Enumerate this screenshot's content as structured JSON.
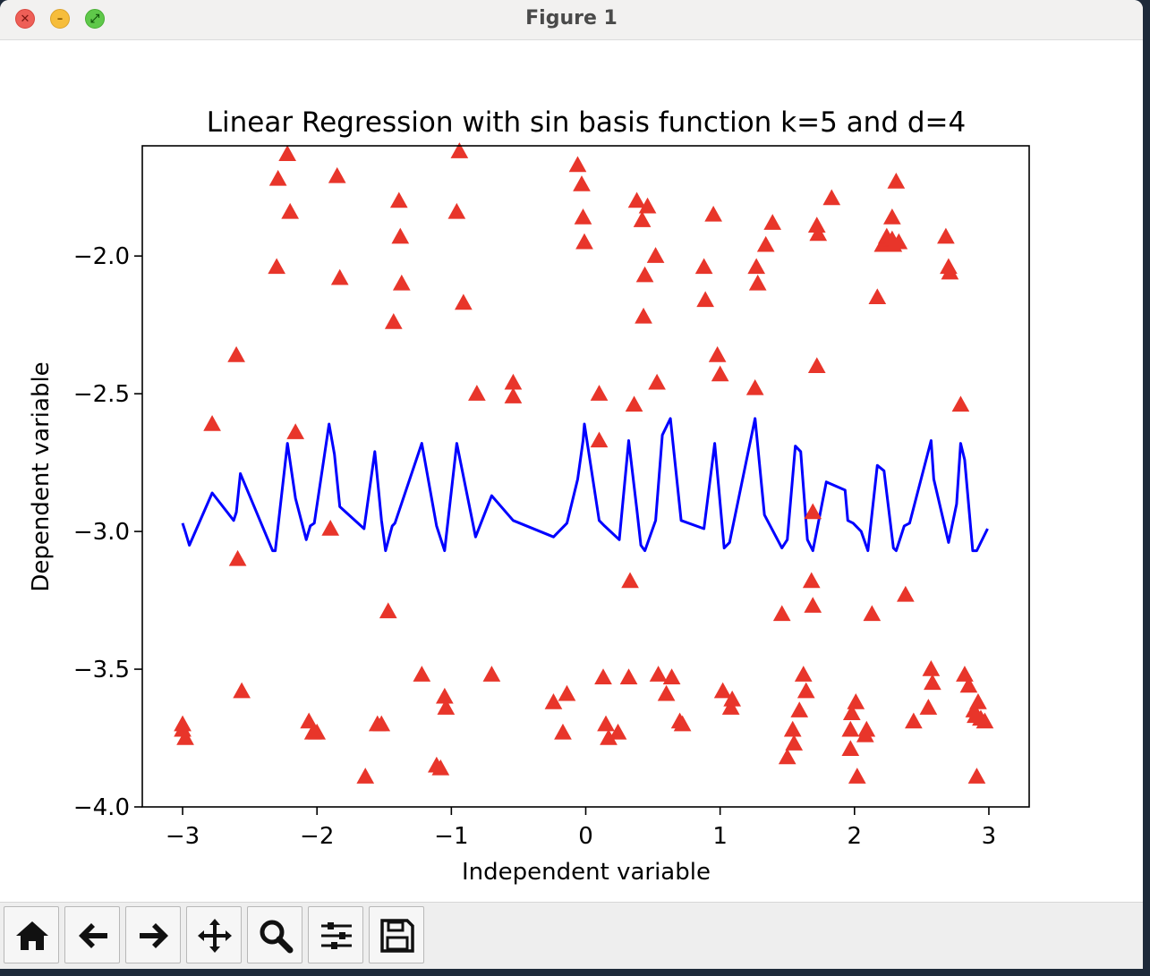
{
  "window": {
    "title": "Figure 1",
    "controls": {
      "close": "✕",
      "minimize": "–",
      "maximize": "⤢"
    }
  },
  "toolbar": {
    "buttons": [
      {
        "name": "home-button",
        "icon": "home-icon"
      },
      {
        "name": "back-button",
        "icon": "arrow-left-icon"
      },
      {
        "name": "forward-button",
        "icon": "arrow-right-icon"
      },
      {
        "name": "pan-button",
        "icon": "move-icon"
      },
      {
        "name": "zoom-button",
        "icon": "magnifier-icon"
      },
      {
        "name": "configure-subplots-button",
        "icon": "sliders-icon"
      },
      {
        "name": "save-button",
        "icon": "floppy-disk-icon"
      }
    ]
  },
  "chart_data": {
    "type": "line+scatter",
    "title": "Linear Regression with sin basis function k=5 and d=4",
    "xlabel": "Independent variable",
    "ylabel": "Dependent variable",
    "xlim": [
      -3.3,
      3.3
    ],
    "ylim": [
      -4.0,
      -1.6
    ],
    "xticks": [
      -3,
      -2,
      -1,
      0,
      1,
      2,
      3
    ],
    "xtick_labels": [
      "−3",
      "−2",
      "−1",
      "0",
      "1",
      "2",
      "3"
    ],
    "yticks": [
      -4.0,
      -3.5,
      -3.0,
      -2.5,
      -2.0
    ],
    "ytick_labels": [
      "−4.0",
      "−3.5",
      "−3.0",
      "−2.5",
      "−2.0"
    ],
    "grid": false,
    "series": [
      {
        "kind": "line",
        "color": "#0000ff",
        "x": [
          -3.0,
          -2.98,
          -2.95,
          -2.78,
          -2.62,
          -2.6,
          -2.57,
          -2.33,
          -2.31,
          -2.22,
          -2.16,
          -2.08,
          -2.05,
          -2.02,
          -1.91,
          -1.87,
          -1.83,
          -1.65,
          -1.57,
          -1.52,
          -1.49,
          -1.44,
          -1.42,
          -1.22,
          -1.11,
          -1.05,
          -0.96,
          -0.82,
          -0.7,
          -0.54,
          -0.24,
          -0.14,
          -0.06,
          -0.02,
          -0.01,
          0.1,
          0.14,
          0.25,
          0.32,
          0.38,
          0.41,
          0.44,
          0.52,
          0.57,
          0.63,
          0.71,
          0.88,
          0.96,
          1.03,
          1.07,
          1.26,
          1.33,
          1.46,
          1.5,
          1.56,
          1.6,
          1.65,
          1.69,
          1.79,
          1.93,
          1.95,
          1.99,
          2.05,
          2.1,
          2.17,
          2.22,
          2.29,
          2.31,
          2.37,
          2.41,
          2.57,
          2.59,
          2.7,
          2.76,
          2.79,
          2.82,
          2.88,
          2.91,
          2.99
        ],
        "y": [
          -2.97,
          -3.0,
          -3.05,
          -2.86,
          -2.96,
          -2.93,
          -2.79,
          -3.07,
          -3.07,
          -2.68,
          -2.88,
          -3.03,
          -2.98,
          -2.97,
          -2.61,
          -2.72,
          -2.91,
          -2.99,
          -2.71,
          -2.96,
          -3.07,
          -2.98,
          -2.97,
          -2.68,
          -2.98,
          -3.07,
          -2.68,
          -3.02,
          -2.87,
          -2.96,
          -3.02,
          -2.97,
          -2.81,
          -2.67,
          -2.61,
          -2.96,
          -2.98,
          -3.03,
          -2.67,
          -2.92,
          -3.05,
          -3.07,
          -2.96,
          -2.65,
          -2.59,
          -2.96,
          -2.99,
          -2.68,
          -3.06,
          -3.04,
          -2.59,
          -2.94,
          -3.06,
          -3.03,
          -2.69,
          -2.71,
          -3.03,
          -3.07,
          -2.82,
          -2.85,
          -2.96,
          -2.97,
          -3.0,
          -3.07,
          -2.76,
          -2.78,
          -3.06,
          -3.07,
          -2.98,
          -2.97,
          -2.67,
          -2.81,
          -3.04,
          -2.9,
          -2.68,
          -2.74,
          -3.07,
          -3.07,
          -2.99
        ]
      },
      {
        "kind": "scatter",
        "marker": "triangle",
        "color": "#e8352a",
        "x": [
          -3.0,
          -3.0,
          -2.98,
          -2.78,
          -2.6,
          -2.59,
          -2.56,
          -2.3,
          -2.29,
          -2.22,
          -2.2,
          -2.16,
          -2.06,
          -2.03,
          -2.0,
          -1.9,
          -1.85,
          -1.83,
          -1.64,
          -1.55,
          -1.52,
          -1.47,
          -1.43,
          -1.39,
          -1.38,
          -1.37,
          -1.22,
          -1.11,
          -1.08,
          -1.05,
          -1.04,
          -0.96,
          -0.94,
          -0.91,
          -0.81,
          -0.7,
          -0.54,
          -0.54,
          -0.24,
          -0.17,
          -0.14,
          -0.06,
          -0.03,
          -0.02,
          -0.01,
          0.1,
          0.1,
          0.13,
          0.15,
          0.17,
          0.24,
          0.32,
          0.33,
          0.36,
          0.38,
          0.42,
          0.43,
          0.44,
          0.46,
          0.52,
          0.53,
          0.54,
          0.6,
          0.64,
          0.7,
          0.72,
          0.88,
          0.89,
          0.95,
          0.98,
          1.0,
          1.02,
          1.08,
          1.09,
          1.26,
          1.27,
          1.28,
          1.34,
          1.39,
          1.46,
          1.5,
          1.54,
          1.55,
          1.59,
          1.62,
          1.64,
          1.68,
          1.69,
          1.69,
          1.72,
          1.72,
          1.73,
          1.83,
          1.97,
          1.97,
          1.98,
          2.01,
          2.02,
          2.08,
          2.09,
          2.13,
          2.17,
          2.21,
          2.24,
          2.28,
          2.28,
          2.29,
          2.31,
          2.33,
          2.38,
          2.44,
          2.55,
          2.57,
          2.58,
          2.68,
          2.7,
          2.71,
          2.79,
          2.82,
          2.85,
          2.89,
          2.9,
          2.91,
          2.92,
          2.94,
          2.97
        ],
        "y": [
          -3.72,
          -3.7,
          -3.75,
          -2.61,
          -2.36,
          -3.1,
          -3.58,
          -2.04,
          -1.72,
          -1.63,
          -1.84,
          -2.64,
          -3.69,
          -3.73,
          -3.73,
          -2.99,
          -1.71,
          -2.08,
          -3.89,
          -3.7,
          -3.7,
          -3.29,
          -2.24,
          -1.8,
          -1.93,
          -2.1,
          -3.52,
          -3.85,
          -3.86,
          -3.6,
          -3.64,
          -1.84,
          -1.62,
          -2.17,
          -2.5,
          -3.52,
          -2.46,
          -2.51,
          -3.62,
          -3.73,
          -3.59,
          -1.67,
          -1.74,
          -1.86,
          -1.95,
          -2.5,
          -2.67,
          -3.53,
          -3.7,
          -3.75,
          -3.73,
          -3.53,
          -3.18,
          -2.54,
          -1.8,
          -1.87,
          -2.22,
          -2.07,
          -1.82,
          -2.0,
          -2.46,
          -3.52,
          -3.59,
          -3.53,
          -3.69,
          -3.7,
          -2.04,
          -2.16,
          -1.85,
          -2.36,
          -2.43,
          -3.58,
          -3.64,
          -3.61,
          -2.48,
          -2.04,
          -2.1,
          -1.96,
          -1.88,
          -3.3,
          -3.82,
          -3.72,
          -3.77,
          -3.65,
          -3.52,
          -3.58,
          -3.18,
          -3.27,
          -2.93,
          -2.4,
          -1.89,
          -1.92,
          -1.79,
          -3.72,
          -3.79,
          -3.66,
          -3.62,
          -3.89,
          -3.74,
          -3.72,
          -3.3,
          -2.15,
          -1.96,
          -1.93,
          -1.94,
          -1.86,
          -1.96,
          -1.73,
          -1.95,
          -3.23,
          -3.69,
          -3.64,
          -3.5,
          -3.55,
          -1.93,
          -2.04,
          -2.06,
          -2.54,
          -3.52,
          -3.56,
          -3.65,
          -3.67,
          -3.89,
          -3.62,
          -3.68,
          -3.69
        ]
      }
    ]
  }
}
